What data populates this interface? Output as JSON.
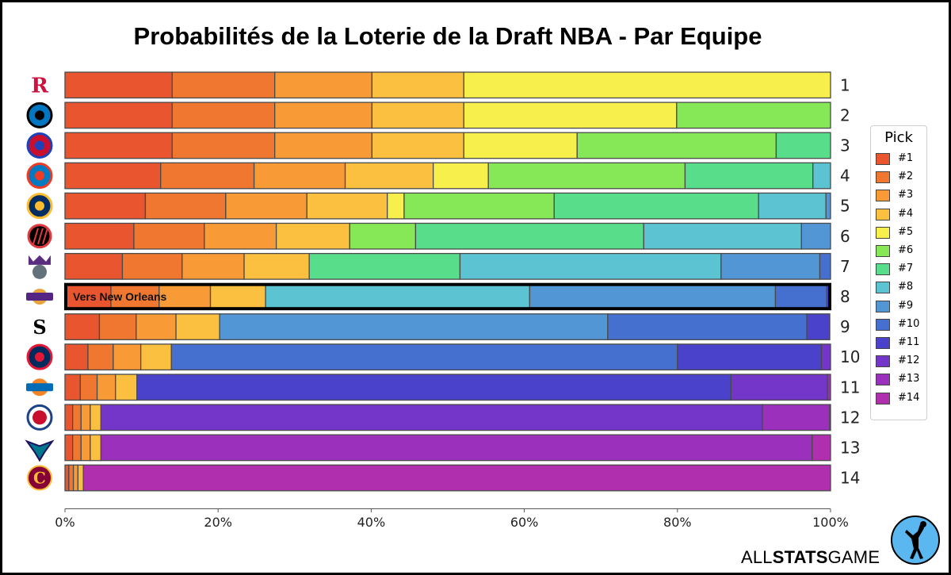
{
  "title": "Probabilités de la Loterie de la Draft NBA - Par Equipe",
  "brand": {
    "prefix": "ALL",
    "bold": "STATS",
    "suffix": "GAME"
  },
  "legend": {
    "title": "Pick"
  },
  "colors": [
    "#e8552f",
    "#f07730",
    "#f89a35",
    "#fcc040",
    "#f7ef4c",
    "#86e856",
    "#58de8b",
    "#5cc3d3",
    "#5396d6",
    "#4670d0",
    "#4b42cc",
    "#7436c8",
    "#9a30bc",
    "#b02fae"
  ],
  "chart_data": {
    "type": "bar",
    "orientation": "horizontal",
    "stacked": true,
    "title": "Probabilités de la Loterie de la Draft NBA - Par Equipe",
    "xlim": [
      0,
      100
    ],
    "xticks": [
      "0%",
      "20%",
      "40%",
      "60%",
      "80%",
      "100%"
    ],
    "legend_title": "Pick",
    "legend_position": "right",
    "series_names": [
      "#1",
      "#2",
      "#3",
      "#4",
      "#5",
      "#6",
      "#7",
      "#8",
      "#9",
      "#10",
      "#11",
      "#12",
      "#13",
      "#14"
    ],
    "teams": [
      {
        "rank": "1",
        "logo": "rockets-logo",
        "values": [
          14.0,
          13.4,
          12.7,
          12.0,
          47.9,
          0,
          0,
          0,
          0,
          0,
          0,
          0,
          0,
          0
        ]
      },
      {
        "rank": "2",
        "logo": "magic-logo",
        "values": [
          14.0,
          13.4,
          12.7,
          12.0,
          27.8,
          20.1,
          0,
          0,
          0,
          0,
          0,
          0,
          0,
          0
        ]
      },
      {
        "rank": "3",
        "logo": "pistons-logo",
        "values": [
          14.0,
          13.4,
          12.7,
          12.0,
          14.8,
          26.0,
          7.1,
          0,
          0,
          0,
          0,
          0,
          0,
          0
        ]
      },
      {
        "rank": "4",
        "logo": "thunder-logo",
        "values": [
          12.5,
          12.2,
          11.9,
          11.5,
          7.2,
          25.7,
          16.7,
          2.3,
          0,
          0,
          0,
          0,
          0,
          0
        ]
      },
      {
        "rank": "5",
        "logo": "pacers-logo",
        "values": [
          10.5,
          10.5,
          10.6,
          10.5,
          2.2,
          19.6,
          26.7,
          8.8,
          0.6,
          0,
          0,
          0,
          0,
          0
        ]
      },
      {
        "rank": "6",
        "logo": "blazers-logo",
        "values": [
          9.0,
          9.2,
          9.4,
          9.6,
          0,
          8.6,
          29.8,
          20.6,
          3.8,
          0,
          0,
          0,
          0,
          0
        ]
      },
      {
        "rank": "7",
        "logo": "kings-logo",
        "values": [
          7.5,
          7.8,
          8.1,
          8.5,
          0,
          0,
          19.7,
          34.1,
          12.9,
          1.4,
          0,
          0,
          0,
          0
        ]
      },
      {
        "rank": "8",
        "logo": "lakers-logo",
        "values": [
          6.0,
          6.3,
          6.7,
          7.2,
          0,
          0,
          0,
          34.5,
          32.1,
          6.7,
          0.4,
          0,
          0,
          0
        ],
        "note": "Vers New Orleans"
      },
      {
        "rank": "9",
        "logo": "spurs-logo",
        "values": [
          4.5,
          4.8,
          5.2,
          5.7,
          0,
          0,
          0,
          0,
          50.7,
          26.0,
          3.0,
          0,
          0,
          0
        ]
      },
      {
        "rank": "10",
        "logo": "wizards-logo",
        "values": [
          3.0,
          3.3,
          3.6,
          4.0,
          0,
          0,
          0,
          0,
          0,
          66.1,
          18.8,
          1.2,
          0,
          0
        ]
      },
      {
        "rank": "11",
        "logo": "knicks-logo",
        "values": [
          2.0,
          2.2,
          2.4,
          2.8,
          0,
          0,
          0,
          0,
          0,
          0,
          77.6,
          12.6,
          0.4,
          0
        ]
      },
      {
        "rank": "12",
        "logo": "clippers-logo",
        "values": [
          1.0,
          1.1,
          1.2,
          1.4,
          0,
          0,
          0,
          0,
          0,
          0,
          0,
          86.4,
          8.8,
          0.1
        ]
      },
      {
        "rank": "13",
        "logo": "hornets-logo",
        "values": [
          1.0,
          1.1,
          1.2,
          1.4,
          0,
          0,
          0,
          0,
          0,
          0,
          0,
          0,
          92.9,
          2.4
        ],
        "note_hidden": false
      },
      {
        "rank": "14",
        "logo": "cavaliers-logo",
        "values": [
          0.5,
          0.6,
          0.6,
          0.7,
          0,
          0,
          0,
          0,
          0,
          0,
          0,
          0,
          0,
          97.6
        ]
      }
    ]
  }
}
